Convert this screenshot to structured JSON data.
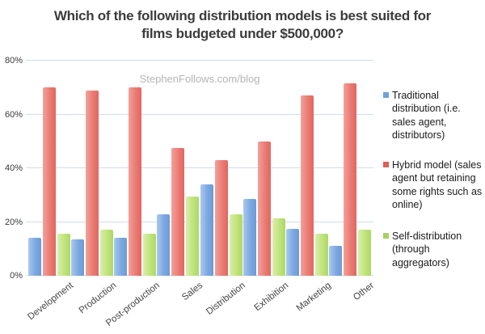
{
  "title": {
    "line1": "Which of the following distribution models is best suited for",
    "line2": "films budgeted under $500,000?"
  },
  "watermark": "StephenFollows.com/blog",
  "chart_data": {
    "type": "bar",
    "title": "Which of the following distribution models is best suited for films budgeted under $500,000?",
    "categories": [
      "Development",
      "Production",
      "Post-production",
      "Sales",
      "Distribution",
      "Exhibition",
      "Marketing",
      "Other"
    ],
    "series": [
      {
        "name": "Traditional distribution (i.e. sales agent, distributors)",
        "values": [
          14,
          13.5,
          14,
          23,
          34,
          28.5,
          17.5,
          11
        ],
        "color_light": "#abc8ef",
        "color": "#7ca8e0",
        "color_dark": "#6b9bd7",
        "swatch": "#6fa2db"
      },
      {
        "name": "Hybrid model (sales agent but retaining some rights such as online)",
        "values": [
          70,
          69,
          70,
          47.5,
          43,
          50,
          67,
          71.5
        ],
        "color_light": "#f3a19a",
        "color": "#e97c74",
        "color_dark": "#e16760",
        "swatch": "#dc6159"
      },
      {
        "name": "Self-distribution (through aggregators)",
        "values": [
          15.5,
          17,
          15.5,
          29.5,
          23,
          21.5,
          15.5,
          17
        ],
        "color_light": "#d9eeab",
        "color": "#c0e47c",
        "color_dark": "#aed766",
        "swatch": "#a6d164"
      }
    ],
    "xlabel": "",
    "ylabel": "",
    "ylim": [
      0,
      80
    ],
    "yticks": [
      "0%",
      "20%",
      "40%",
      "60%",
      "80%"
    ],
    "grid": true,
    "gridline_color": "#cdddee",
    "legend_position": "right"
  }
}
